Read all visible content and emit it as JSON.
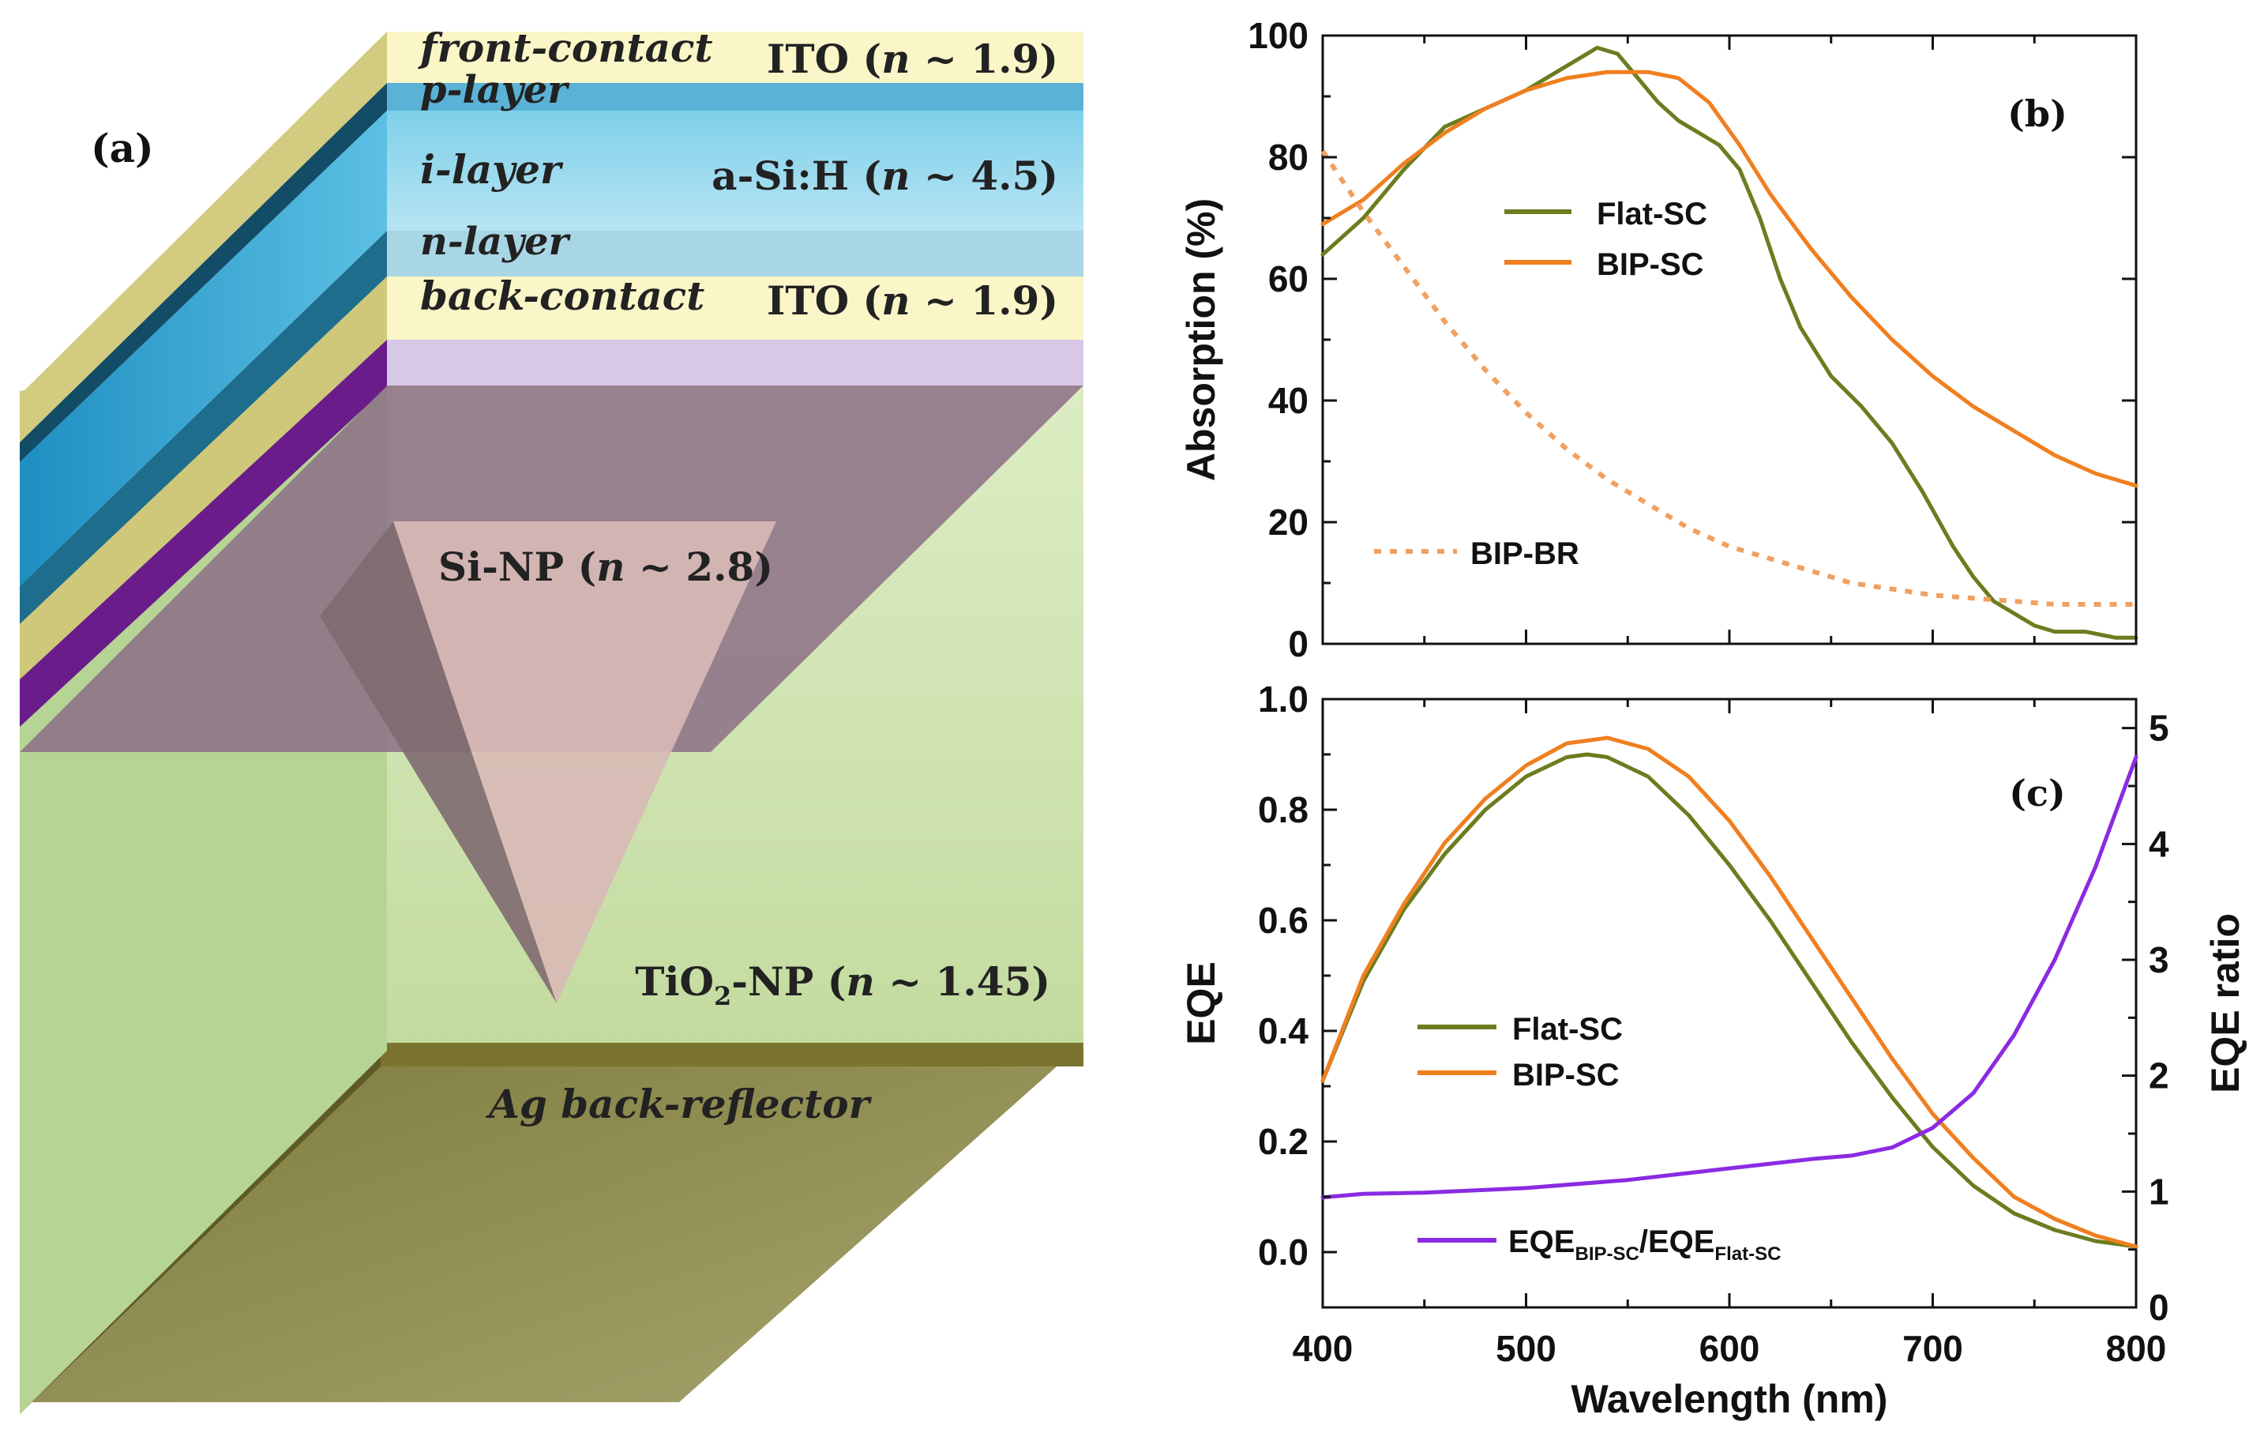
{
  "figure": {
    "panel_a": {
      "label": "(a)",
      "layers": {
        "front_contact": {
          "name": "front-contact",
          "material": "ITO",
          "n": "1.9"
        },
        "p_layer": {
          "name": "p-layer"
        },
        "i_layer": {
          "name": "i-layer",
          "material": "a-Si:H",
          "n": "4.5"
        },
        "n_layer": {
          "name": "n-layer"
        },
        "back_contact": {
          "name": "back-contact",
          "material": "ITO",
          "n": "1.9"
        }
      },
      "si_np": {
        "name": "Si-NP",
        "n": "2.8"
      },
      "tio2_np": {
        "name_prefix": "TiO",
        "name_sub": "2",
        "name_suffix": "-NP",
        "n": "1.45"
      },
      "ag": {
        "name": "Ag back-reflector"
      },
      "n_symbol": "n",
      "approx": "~",
      "open": "(",
      "close": ")"
    }
  },
  "chart_data": [
    {
      "panel": "(b)",
      "type": "line",
      "title": "",
      "xlabel": "",
      "ylabel": "Absorption (%)",
      "xlim": [
        400,
        800
      ],
      "ylim": [
        0,
        100
      ],
      "yticks": [
        "0",
        "20",
        "40",
        "60",
        "80",
        "100"
      ],
      "grid": false,
      "legend_position": "center",
      "series": [
        {
          "name": "Flat-SC",
          "color": "#6b7d1f",
          "style": "solid",
          "x": [
            400,
            420,
            440,
            460,
            480,
            500,
            515,
            525,
            535,
            545,
            555,
            565,
            575,
            585,
            595,
            605,
            615,
            625,
            635,
            650,
            665,
            680,
            695,
            710,
            720,
            730,
            740,
            750,
            760,
            775,
            790,
            800
          ],
          "y": [
            64,
            70,
            78,
            85,
            88,
            91,
            94,
            96,
            98,
            97,
            93,
            89,
            86,
            84,
            82,
            78,
            70,
            60,
            52,
            44,
            39,
            33,
            25,
            16,
            11,
            7,
            5,
            3,
            2,
            2,
            1,
            1
          ]
        },
        {
          "name": "BIP-SC",
          "color": "#f07f1f",
          "style": "solid",
          "x": [
            400,
            420,
            440,
            460,
            480,
            500,
            520,
            540,
            560,
            575,
            590,
            605,
            620,
            640,
            660,
            680,
            700,
            720,
            740,
            760,
            780,
            800
          ],
          "y": [
            69,
            73,
            79,
            84,
            88,
            91,
            93,
            94,
            94,
            93,
            89,
            82,
            74,
            65,
            57,
            50,
            44,
            39,
            35,
            31,
            28,
            26
          ]
        },
        {
          "name": "BIP-BR",
          "color": "#f0a060",
          "style": "dotted",
          "x": [
            400,
            420,
            440,
            460,
            480,
            500,
            520,
            540,
            560,
            580,
            600,
            620,
            640,
            660,
            680,
            700,
            720,
            740,
            760,
            780,
            800
          ],
          "y": [
            81,
            71,
            62,
            53,
            45,
            38,
            32,
            27,
            23,
            19,
            16,
            14,
            12,
            10,
            9,
            8,
            7.5,
            7,
            6.5,
            6.5,
            6.5
          ]
        }
      ]
    },
    {
      "panel": "(c)",
      "type": "line",
      "title": "",
      "xlabel": "Wavelength (nm)",
      "ylabel": "EQE",
      "y2label": "EQE ratio",
      "xlim": [
        400,
        800
      ],
      "xticks": [
        "400",
        "500",
        "600",
        "700",
        "800"
      ],
      "ylim": [
        -0.1,
        1.0
      ],
      "yticks": [
        "0.0",
        "0.2",
        "0.4",
        "0.6",
        "0.8",
        "1.0"
      ],
      "y2lim": [
        0,
        5.25
      ],
      "y2ticks": [
        "0",
        "1",
        "2",
        "3",
        "4",
        "5"
      ],
      "grid": false,
      "legend_position": "left",
      "series": [
        {
          "name": "Flat-SC",
          "axis": "left",
          "color": "#6b7d1f",
          "x": [
            400,
            420,
            440,
            460,
            480,
            500,
            520,
            530,
            540,
            560,
            580,
            600,
            620,
            640,
            660,
            680,
            700,
            720,
            740,
            760,
            780,
            800
          ],
          "y": [
            0.31,
            0.49,
            0.62,
            0.72,
            0.8,
            0.86,
            0.895,
            0.9,
            0.895,
            0.86,
            0.79,
            0.7,
            0.6,
            0.49,
            0.38,
            0.28,
            0.19,
            0.12,
            0.07,
            0.04,
            0.02,
            0.01
          ]
        },
        {
          "name": "BIP-SC",
          "axis": "left",
          "color": "#f07f1f",
          "x": [
            400,
            420,
            440,
            460,
            480,
            500,
            520,
            540,
            560,
            580,
            600,
            620,
            640,
            660,
            680,
            700,
            720,
            740,
            760,
            780,
            800
          ],
          "y": [
            0.31,
            0.5,
            0.63,
            0.74,
            0.82,
            0.88,
            0.92,
            0.93,
            0.91,
            0.86,
            0.78,
            0.68,
            0.57,
            0.46,
            0.35,
            0.25,
            0.17,
            0.1,
            0.06,
            0.03,
            0.01
          ]
        },
        {
          "name_parts": [
            "EQE",
            "BIP-SC",
            "/EQE",
            "Flat-SC"
          ],
          "axis": "right",
          "color": "#8a2be2",
          "x": [
            400,
            420,
            450,
            500,
            550,
            600,
            640,
            660,
            680,
            700,
            720,
            740,
            760,
            780,
            800
          ],
          "y": [
            0.95,
            0.98,
            0.99,
            1.03,
            1.1,
            1.2,
            1.28,
            1.31,
            1.38,
            1.55,
            1.85,
            2.35,
            3.0,
            3.8,
            4.75
          ]
        }
      ]
    }
  ]
}
